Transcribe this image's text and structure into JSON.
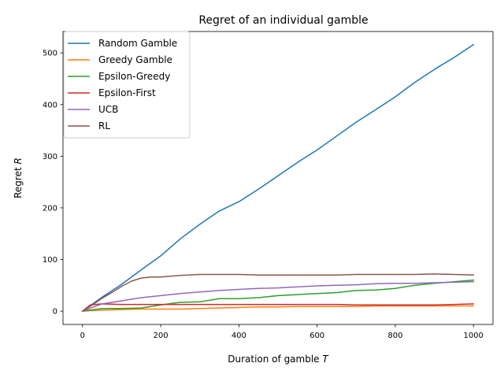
{
  "chart_data": {
    "type": "line",
    "title": "Regret of an individual gamble",
    "xlabel": "Duration of gamble",
    "xlabel_var": "T",
    "ylabel": "Regret",
    "ylabel_var": "R",
    "xlim": [
      -50,
      1050
    ],
    "ylim": [
      -25.8,
      541.5
    ],
    "xticks": [
      0,
      200,
      400,
      600,
      800,
      1000
    ],
    "yticks": [
      0,
      100,
      200,
      300,
      400,
      500
    ],
    "grid": false,
    "legend_position": "top-left",
    "series": [
      {
        "name": "Random Gamble",
        "color": "#1f77b4",
        "x": [
          0,
          50,
          100,
          150,
          200,
          250,
          300,
          350,
          400,
          450,
          500,
          550,
          600,
          650,
          700,
          750,
          800,
          850,
          900,
          950,
          1000
        ],
        "y": [
          0,
          27,
          52,
          80,
          107,
          140,
          168,
          194,
          212,
          236,
          262,
          288,
          312,
          339,
          366,
          390,
          415,
          443,
          468,
          491,
          516
        ]
      },
      {
        "name": "Greedy Gamble",
        "color": "#ff7f0e",
        "x": [
          0,
          50,
          100,
          150,
          200,
          250,
          300,
          350,
          400,
          450,
          500,
          550,
          600,
          650,
          700,
          750,
          800,
          850,
          900,
          950,
          1000
        ],
        "y": [
          0,
          2,
          3,
          4,
          4,
          4,
          5,
          6,
          7,
          8,
          8,
          9,
          9,
          9,
          9,
          10,
          10,
          10,
          10,
          10,
          10
        ]
      },
      {
        "name": "Epsilon-Greedy",
        "color": "#2ca02c",
        "x": [
          0,
          50,
          100,
          150,
          200,
          250,
          300,
          350,
          400,
          450,
          500,
          550,
          600,
          650,
          700,
          750,
          800,
          850,
          900,
          950,
          1000
        ],
        "y": [
          0,
          5,
          5,
          6,
          12,
          17,
          18,
          24,
          24,
          26,
          30,
          32,
          34,
          36,
          40,
          41,
          44,
          50,
          54,
          57,
          60
        ]
      },
      {
        "name": "Epsilon-First",
        "color": "#d62728",
        "x": [
          0,
          20,
          50,
          100,
          150,
          200,
          250,
          300,
          350,
          400,
          450,
          500,
          550,
          600,
          650,
          700,
          750,
          800,
          850,
          900,
          950,
          1000
        ],
        "y": [
          0,
          12,
          14,
          13,
          13,
          13,
          13,
          13,
          13,
          13,
          13,
          13,
          13,
          13,
          13,
          12,
          12,
          12,
          12,
          12,
          13,
          14
        ]
      },
      {
        "name": "UCB",
        "color": "#9467bd",
        "x": [
          0,
          50,
          100,
          150,
          200,
          250,
          300,
          350,
          400,
          450,
          500,
          550,
          600,
          650,
          700,
          750,
          800,
          850,
          900,
          950,
          1000
        ],
        "y": [
          0,
          14,
          20,
          26,
          30,
          34,
          37,
          40,
          42,
          44,
          45,
          47,
          49,
          50,
          51,
          53,
          54,
          54,
          55,
          56,
          57
        ]
      },
      {
        "name": "RL",
        "color": "#8c564b",
        "x": [
          0,
          25,
          50,
          75,
          100,
          125,
          150,
          175,
          200,
          250,
          300,
          350,
          400,
          450,
          500,
          550,
          600,
          650,
          700,
          750,
          800,
          850,
          900,
          950,
          1000
        ],
        "y": [
          0,
          12,
          25,
          36,
          48,
          58,
          64,
          66,
          66,
          69,
          71,
          71,
          71,
          70,
          70,
          70,
          70,
          70,
          71,
          71,
          71,
          71,
          72,
          71,
          70
        ]
      }
    ]
  }
}
